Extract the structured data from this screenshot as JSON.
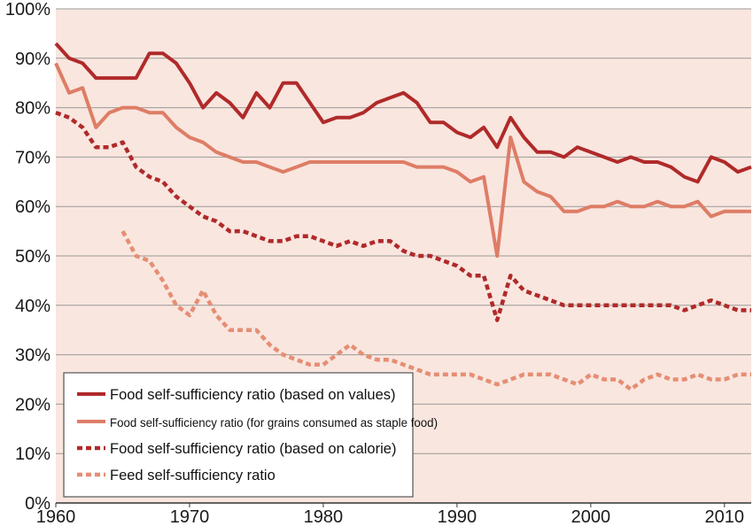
{
  "chart_data": {
    "type": "line",
    "title": "",
    "xlabel": "",
    "ylabel": "",
    "xlim": [
      1960,
      2012
    ],
    "ylim": [
      0,
      100
    ],
    "x_ticks": [
      1960,
      1970,
      1980,
      1990,
      2000,
      2010
    ],
    "x_tick_labels": [
      "1960",
      "1970",
      "1980",
      "1990",
      "2000",
      "2010"
    ],
    "y_ticks": [
      0,
      10,
      20,
      30,
      40,
      50,
      60,
      70,
      80,
      90,
      100
    ],
    "y_tick_labels": [
      "0%",
      "10%",
      "20%",
      "30%",
      "40%",
      "50%",
      "60%",
      "70%",
      "80%",
      "90%",
      "100%"
    ],
    "grid": "horizontal",
    "legend_position": "bottom-left",
    "plot_background": "#f9e6df",
    "gridline_color": "#9a9a9a",
    "series": [
      {
        "name": "Food self-sufficiency ratio (based on values)",
        "color": "#b02a2a",
        "style": "solid",
        "x": [
          1960,
          1961,
          1962,
          1963,
          1964,
          1965,
          1966,
          1967,
          1968,
          1969,
          1970,
          1971,
          1972,
          1973,
          1974,
          1975,
          1976,
          1977,
          1978,
          1979,
          1980,
          1981,
          1982,
          1983,
          1984,
          1985,
          1986,
          1987,
          1988,
          1989,
          1990,
          1991,
          1992,
          1993,
          1994,
          1995,
          1996,
          1997,
          1998,
          1999,
          2000,
          2001,
          2002,
          2003,
          2004,
          2005,
          2006,
          2007,
          2008,
          2009,
          2010,
          2011,
          2012
        ],
        "y": [
          93,
          90,
          89,
          86,
          86,
          86,
          86,
          91,
          91,
          89,
          85,
          80,
          83,
          81,
          78,
          83,
          80,
          85,
          85,
          81,
          77,
          78,
          78,
          79,
          81,
          82,
          83,
          81,
          77,
          77,
          75,
          74,
          76,
          72,
          78,
          74,
          71,
          71,
          70,
          72,
          71,
          70,
          69,
          70,
          69,
          69,
          68,
          66,
          65,
          70,
          69,
          67,
          68
        ]
      },
      {
        "name": "Food self-sufficiency ratio (for grains consumed as staple food)",
        "color": "#de7d66",
        "style": "solid",
        "x": [
          1960,
          1961,
          1962,
          1963,
          1964,
          1965,
          1966,
          1967,
          1968,
          1969,
          1970,
          1971,
          1972,
          1973,
          1974,
          1975,
          1976,
          1977,
          1978,
          1979,
          1980,
          1981,
          1982,
          1983,
          1984,
          1985,
          1986,
          1987,
          1988,
          1989,
          1990,
          1991,
          1992,
          1993,
          1994,
          1995,
          1996,
          1997,
          1998,
          1999,
          2000,
          2001,
          2002,
          2003,
          2004,
          2005,
          2006,
          2007,
          2008,
          2009,
          2010,
          2011,
          2012
        ],
        "y": [
          89,
          83,
          84,
          76,
          79,
          80,
          80,
          79,
          79,
          76,
          74,
          73,
          71,
          70,
          69,
          69,
          68,
          67,
          68,
          69,
          69,
          69,
          69,
          69,
          69,
          69,
          69,
          68,
          68,
          68,
          67,
          65,
          66,
          50,
          74,
          65,
          63,
          62,
          59,
          59,
          60,
          60,
          61,
          60,
          60,
          61,
          60,
          60,
          61,
          58,
          59,
          59,
          59
        ]
      },
      {
        "name": "Food self-sufficiency ratio (based on calorie)",
        "color": "#b02a2a",
        "style": "dotted",
        "x": [
          1960,
          1961,
          1962,
          1963,
          1964,
          1965,
          1966,
          1967,
          1968,
          1969,
          1970,
          1971,
          1972,
          1973,
          1974,
          1975,
          1976,
          1977,
          1978,
          1979,
          1980,
          1981,
          1982,
          1983,
          1984,
          1985,
          1986,
          1987,
          1988,
          1989,
          1990,
          1991,
          1992,
          1993,
          1994,
          1995,
          1996,
          1997,
          1998,
          1999,
          2000,
          2001,
          2002,
          2003,
          2004,
          2005,
          2006,
          2007,
          2008,
          2009,
          2010,
          2011,
          2012
        ],
        "y": [
          79,
          78,
          76,
          72,
          72,
          73,
          68,
          66,
          65,
          62,
          60,
          58,
          57,
          55,
          55,
          54,
          53,
          53,
          54,
          54,
          53,
          52,
          53,
          52,
          53,
          53,
          51,
          50,
          50,
          49,
          48,
          46,
          46,
          37,
          46,
          43,
          42,
          41,
          40,
          40,
          40,
          40,
          40,
          40,
          40,
          40,
          40,
          39,
          40,
          41,
          40,
          39,
          39
        ]
      },
      {
        "name": "Feed self-sufficiency ratio",
        "color": "#e58e74",
        "style": "dotted",
        "x": [
          1965,
          1966,
          1967,
          1968,
          1969,
          1970,
          1971,
          1972,
          1973,
          1974,
          1975,
          1976,
          1977,
          1978,
          1979,
          1980,
          1981,
          1982,
          1983,
          1984,
          1985,
          1986,
          1987,
          1988,
          1989,
          1990,
          1991,
          1992,
          1993,
          1994,
          1995,
          1996,
          1997,
          1998,
          1999,
          2000,
          2001,
          2002,
          2003,
          2004,
          2005,
          2006,
          2007,
          2008,
          2009,
          2010,
          2011,
          2012
        ],
        "y": [
          55,
          50,
          49,
          45,
          40,
          38,
          43,
          38,
          35,
          35,
          35,
          32,
          30,
          29,
          28,
          28,
          30,
          32,
          30,
          29,
          29,
          28,
          27,
          26,
          26,
          26,
          26,
          25,
          24,
          25,
          26,
          26,
          26,
          25,
          24,
          26,
          25,
          25,
          23,
          25,
          26,
          25,
          25,
          26,
          25,
          25,
          26,
          26
        ]
      }
    ]
  }
}
